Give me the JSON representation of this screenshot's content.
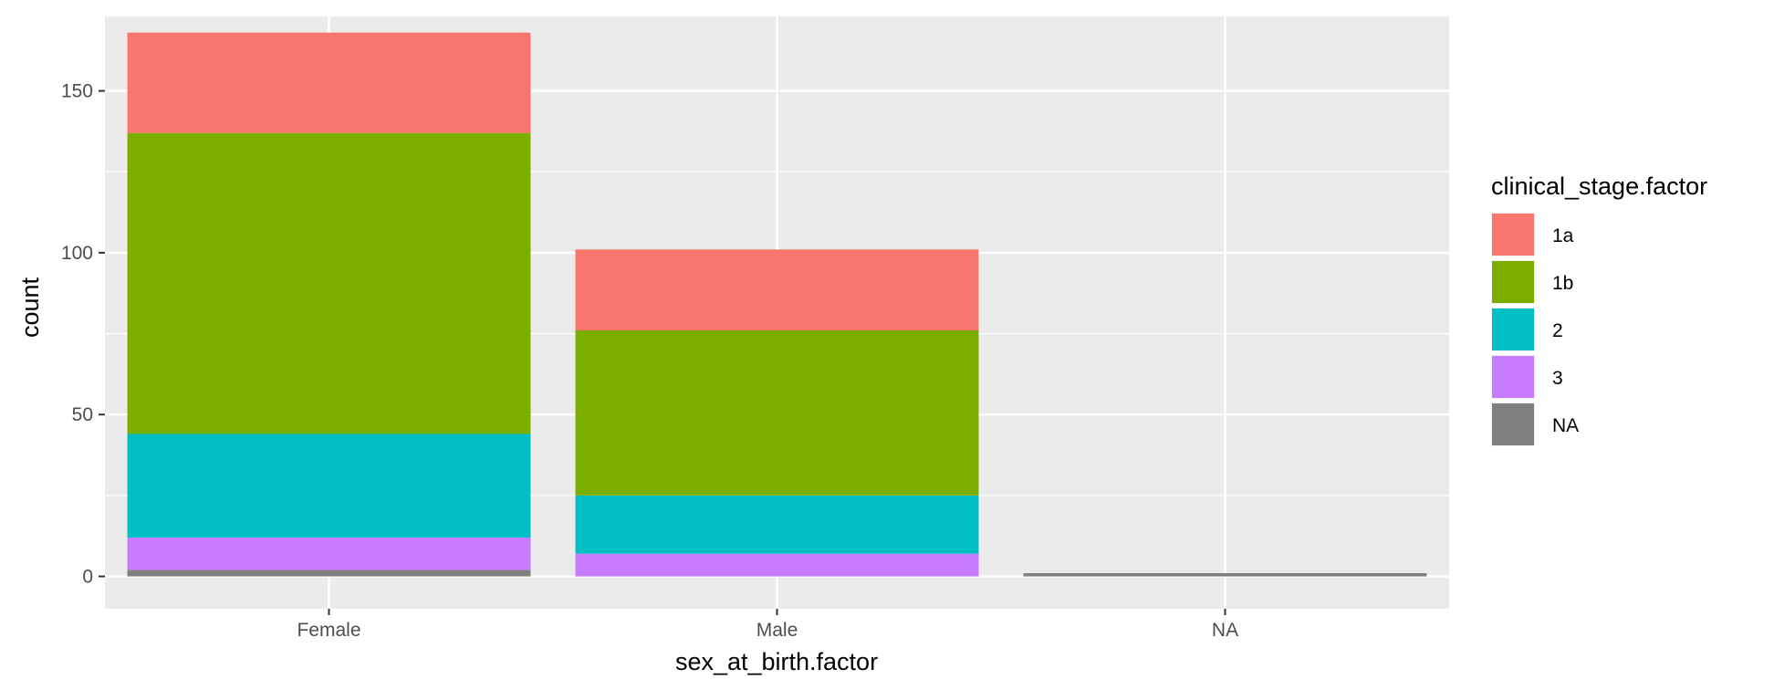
{
  "chart_data": {
    "type": "bar",
    "stacked": true,
    "xlabel": "sex_at_birth.factor",
    "ylabel": "count",
    "categories": [
      "Female",
      "Male",
      "NA"
    ],
    "ylim": [
      -10,
      173
    ],
    "yticks": [
      0,
      50,
      100,
      150
    ],
    "grid": true,
    "legend": {
      "title": "clinical_stage.factor",
      "placement": "right",
      "entries": [
        "1a",
        "1b",
        "2",
        "3",
        "NA"
      ]
    },
    "series": [
      {
        "name": "1a",
        "color": "#F8766D",
        "values": [
          31,
          25,
          0
        ]
      },
      {
        "name": "1b",
        "color": "#7CAE00",
        "values": [
          93,
          51,
          0
        ]
      },
      {
        "name": "2",
        "color": "#00BFC4",
        "values": [
          32,
          18,
          0
        ]
      },
      {
        "name": "3",
        "color": "#C77CFF",
        "values": [
          10,
          7,
          0
        ]
      },
      {
        "name": "NA",
        "color": "#7F7F7F",
        "values": [
          2,
          0,
          1
        ]
      }
    ],
    "panel_color": "#EBEBEB",
    "grid_color": "#FFFFFF"
  }
}
